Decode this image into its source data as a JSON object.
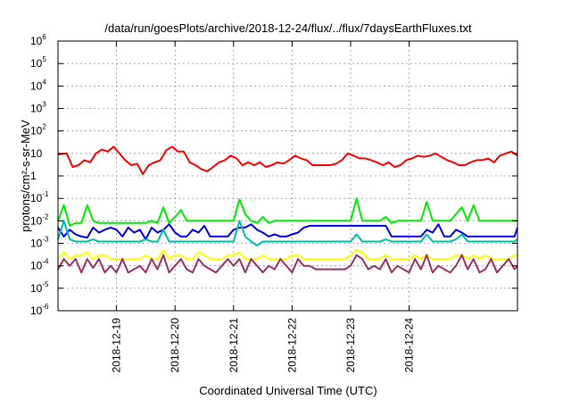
{
  "chart_data": {
    "type": "line",
    "title": "/data/run/goesPlots/archive/2018-12-24/flux/../flux/7daysEarthFluxes.txt",
    "xlabel": "Coordinated Universal Time (UTC)",
    "ylabel": "protons/cm²-s-sr-MeV",
    "yscale": "log",
    "ylim": [
      1e-06,
      1000000.0
    ],
    "xlim": [
      0,
      7.85
    ],
    "x_axis_unit": "days since 2018-12-18 00:00 UTC",
    "grid": true,
    "legend": "none",
    "x_ticks": [
      {
        "x": 1,
        "label": "2018-12-19"
      },
      {
        "x": 2,
        "label": "2018-12-20"
      },
      {
        "x": 3,
        "label": "2018-12-21"
      },
      {
        "x": 4,
        "label": "2018-12-22"
      },
      {
        "x": 5,
        "label": "2018-12-23"
      },
      {
        "x": 6,
        "label": "2018-12-24"
      }
    ],
    "y_ticks": [
      {
        "value": 1e-06,
        "base": "10",
        "exp": "-6"
      },
      {
        "value": 1e-05,
        "base": "10",
        "exp": "-5"
      },
      {
        "value": 0.0001,
        "base": "10",
        "exp": "-4"
      },
      {
        "value": 0.001,
        "base": "10",
        "exp": "-3"
      },
      {
        "value": 0.01,
        "base": "10",
        "exp": "-2"
      },
      {
        "value": 0.1,
        "base": "10",
        "exp": "-1"
      },
      {
        "value": 1,
        "base": "1",
        "exp": ""
      },
      {
        "value": 10,
        "base": "10",
        "exp": ""
      },
      {
        "value": 100.0,
        "base": "10",
        "exp": "2"
      },
      {
        "value": 1000.0,
        "base": "10",
        "exp": "3"
      },
      {
        "value": 10000.0,
        "base": "10",
        "exp": "4"
      },
      {
        "value": 100000.0,
        "base": "10",
        "exp": "5"
      },
      {
        "value": 1000000.0,
        "base": "10",
        "exp": "6"
      }
    ],
    "series": [
      {
        "color": "#ff0000",
        "x": [
          0,
          0.15,
          0.25,
          0.35,
          0.45,
          0.55,
          0.65,
          0.75,
          0.85,
          0.95,
          1.05,
          1.15,
          1.25,
          1.35,
          1.45,
          1.55,
          1.65,
          1.75,
          1.85,
          1.95,
          2.05,
          2.15,
          2.25,
          2.35,
          2.45,
          2.55,
          2.65,
          2.75,
          2.85,
          2.95,
          3.05,
          3.15,
          3.25,
          3.35,
          3.45,
          3.55,
          3.65,
          3.75,
          3.85,
          3.95,
          4.05,
          4.15,
          4.25,
          4.35,
          4.45,
          4.55,
          4.65,
          4.75,
          4.85,
          4.95,
          5.05,
          5.15,
          5.25,
          5.35,
          5.45,
          5.55,
          5.65,
          5.75,
          5.85,
          5.95,
          6.05,
          6.15,
          6.25,
          6.35,
          6.45,
          6.55,
          6.65,
          6.75,
          6.85,
          6.95,
          7.05,
          7.15,
          7.25,
          7.35,
          7.45,
          7.55,
          7.65,
          7.75,
          7.85
        ],
        "y": [
          9,
          10,
          2.5,
          3,
          5,
          4,
          10,
          15,
          12,
          20,
          10,
          5,
          3,
          3.5,
          1.2,
          3,
          4,
          5,
          14,
          20,
          12,
          12,
          4,
          3,
          2,
          1.6,
          2.5,
          4,
          5,
          8,
          6,
          3,
          4,
          3,
          4,
          2.5,
          3,
          4,
          3.5,
          5,
          8,
          6,
          5,
          3,
          3,
          3,
          3,
          3.5,
          5,
          10,
          8,
          6,
          6,
          5,
          4,
          3,
          4,
          2.5,
          3,
          5,
          6,
          8,
          7,
          8,
          10,
          7,
          5,
          4,
          3,
          3,
          4,
          5,
          5,
          6,
          4,
          8,
          10,
          12,
          8
        ]
      },
      {
        "color": "#00ee00",
        "x": [
          0,
          0.1,
          0.2,
          0.3,
          0.4,
          0.5,
          0.6,
          0.7,
          0.8,
          0.9,
          1.0,
          1.1,
          1.2,
          1.3,
          1.4,
          1.5,
          1.6,
          1.7,
          1.8,
          1.9,
          2.0,
          2.1,
          2.2,
          2.3,
          2.4,
          2.5,
          2.6,
          2.7,
          2.8,
          2.9,
          3.0,
          3.1,
          3.2,
          3.3,
          3.4,
          3.5,
          3.6,
          3.7,
          3.8,
          3.9,
          4.0,
          4.1,
          4.2,
          4.3,
          4.4,
          4.5,
          4.6,
          4.7,
          4.8,
          4.9,
          5.0,
          5.1,
          5.2,
          5.3,
          5.4,
          5.5,
          5.6,
          5.7,
          5.8,
          5.9,
          6.0,
          6.1,
          6.2,
          6.3,
          6.4,
          6.5,
          6.6,
          6.7,
          6.8,
          6.9,
          7.0,
          7.1,
          7.2,
          7.3,
          7.4,
          7.5,
          7.6,
          7.7,
          7.8,
          7.85
        ],
        "y": [
          0.01,
          0.05,
          0.006,
          0.008,
          0.008,
          0.05,
          0.01,
          0.008,
          0.008,
          0.008,
          0.008,
          0.008,
          0.008,
          0.008,
          0.008,
          0.008,
          0.01,
          0.008,
          0.04,
          0.008,
          0.015,
          0.03,
          0.01,
          0.01,
          0.01,
          0.01,
          0.01,
          0.01,
          0.01,
          0.01,
          0.01,
          0.09,
          0.02,
          0.01,
          0.008,
          0.015,
          0.008,
          0.01,
          0.01,
          0.01,
          0.01,
          0.01,
          0.01,
          0.01,
          0.01,
          0.01,
          0.01,
          0.01,
          0.01,
          0.01,
          0.01,
          0.1,
          0.01,
          0.01,
          0.01,
          0.01,
          0.015,
          0.008,
          0.01,
          0.01,
          0.01,
          0.01,
          0.01,
          0.07,
          0.01,
          0.01,
          0.01,
          0.01,
          0.02,
          0.04,
          0.01,
          0.05,
          0.01,
          0.01,
          0.01,
          0.01,
          0.01,
          0.01,
          0.01,
          0.01
        ]
      },
      {
        "color": "#0000ee",
        "x": [
          0,
          0.1,
          0.2,
          0.3,
          0.4,
          0.5,
          0.6,
          0.7,
          0.8,
          0.9,
          1.0,
          1.1,
          1.2,
          1.3,
          1.4,
          1.5,
          1.6,
          1.7,
          1.8,
          1.9,
          2.0,
          2.1,
          2.2,
          2.3,
          2.4,
          2.5,
          2.6,
          2.7,
          2.8,
          2.9,
          3.0,
          3.1,
          3.2,
          3.3,
          3.4,
          3.5,
          3.6,
          3.7,
          3.8,
          3.9,
          4.0,
          4.1,
          4.2,
          4.3,
          4.4,
          4.5,
          4.6,
          4.7,
          4.8,
          4.9,
          5.0,
          5.1,
          5.2,
          5.3,
          5.4,
          5.5,
          5.6,
          5.7,
          5.8,
          5.9,
          6.0,
          6.1,
          6.2,
          6.3,
          6.4,
          6.5,
          6.6,
          6.7,
          6.8,
          6.9,
          7.0,
          7.1,
          7.2,
          7.3,
          7.4,
          7.5,
          7.6,
          7.7,
          7.8,
          7.85
        ],
        "y": [
          0.005,
          0.002,
          0.004,
          0.0025,
          0.002,
          0.0018,
          0.005,
          0.003,
          0.004,
          0.005,
          0.004,
          0.002,
          0.005,
          0.003,
          0.004,
          0.0015,
          0.005,
          0.003,
          0.004,
          0.007,
          0.003,
          0.002,
          0.002,
          0.004,
          0.003,
          0.006,
          0.002,
          0.002,
          0.002,
          0.002,
          0.004,
          0.005,
          0.005,
          0.007,
          0.004,
          0.003,
          0.002,
          0.0025,
          0.002,
          0.002,
          0.0025,
          0.003,
          0.005,
          0.006,
          0.006,
          0.006,
          0.006,
          0.006,
          0.006,
          0.006,
          0.006,
          0.006,
          0.006,
          0.006,
          0.006,
          0.006,
          0.006,
          0.002,
          0.002,
          0.002,
          0.002,
          0.002,
          0.002,
          0.004,
          0.003,
          0.007,
          0.002,
          0.002,
          0.004,
          0.003,
          0.002,
          0.002,
          0.002,
          0.002,
          0.002,
          0.002,
          0.002,
          0.002,
          0.002,
          0.005
        ]
      },
      {
        "color": "#00c0a0",
        "x": [
          0,
          0.1,
          0.2,
          0.3,
          0.4,
          0.5,
          0.6,
          0.7,
          0.8,
          0.9,
          1.0,
          1.1,
          1.2,
          1.3,
          1.4,
          1.5,
          1.6,
          1.7,
          1.8,
          1.9,
          2.0,
          2.1,
          2.2,
          2.3,
          2.4,
          2.5,
          2.6,
          2.7,
          2.8,
          2.9,
          3.0,
          3.1,
          3.2,
          3.3,
          3.4,
          3.5,
          3.6,
          3.7,
          3.8,
          3.9,
          4.0,
          4.1,
          4.2,
          4.3,
          4.4,
          4.5,
          4.6,
          4.7,
          4.8,
          4.9,
          5.0,
          5.1,
          5.2,
          5.3,
          5.4,
          5.5,
          5.6,
          5.7,
          5.8,
          5.9,
          6.0,
          6.1,
          6.2,
          6.3,
          6.4,
          6.5,
          6.6,
          6.7,
          6.8,
          6.9,
          7.0,
          7.1,
          7.2,
          7.3,
          7.4,
          7.5,
          7.6,
          7.7,
          7.8,
          7.85
        ],
        "y": [
          0.0015,
          0.01,
          0.0015,
          0.0012,
          0.0012,
          0.0012,
          0.0015,
          0.0012,
          0.0012,
          0.0012,
          0.0012,
          0.0012,
          0.0012,
          0.0012,
          0.0012,
          0.0015,
          0.0012,
          0.0012,
          0.004,
          0.0012,
          0.0012,
          0.0012,
          0.0012,
          0.0012,
          0.0012,
          0.0012,
          0.0012,
          0.0012,
          0.0012,
          0.0012,
          0.0012,
          0.01,
          0.002,
          0.0012,
          0.0008,
          0.0012,
          0.0012,
          0.0012,
          0.0012,
          0.0012,
          0.0012,
          0.0012,
          0.0012,
          0.0012,
          0.0012,
          0.0012,
          0.0012,
          0.0012,
          0.0012,
          0.0012,
          0.0012,
          0.0025,
          0.0012,
          0.0012,
          0.0012,
          0.0012,
          0.0015,
          0.0012,
          0.0012,
          0.0012,
          0.0012,
          0.0012,
          0.0012,
          0.0025,
          0.0012,
          0.0012,
          0.0012,
          0.0012,
          0.0015,
          0.0025,
          0.0012,
          0.0012,
          0.0012,
          0.0012,
          0.0012,
          0.0012,
          0.0012,
          0.0012,
          0.0012,
          0.0015
        ]
      },
      {
        "color": "#ffff00",
        "x": [
          0,
          0.1,
          0.2,
          0.3,
          0.4,
          0.5,
          0.6,
          0.7,
          0.8,
          0.9,
          1.0,
          1.1,
          1.2,
          1.3,
          1.4,
          1.5,
          1.6,
          1.7,
          1.8,
          1.9,
          2.0,
          2.1,
          2.2,
          2.3,
          2.4,
          2.5,
          2.6,
          2.7,
          2.8,
          2.9,
          3.0,
          3.1,
          3.2,
          3.3,
          3.4,
          3.5,
          3.6,
          3.7,
          3.8,
          3.9,
          4.0,
          4.1,
          4.2,
          4.3,
          4.4,
          4.5,
          4.6,
          4.7,
          4.8,
          4.9,
          5.0,
          5.1,
          5.2,
          5.3,
          5.4,
          5.5,
          5.6,
          5.7,
          5.8,
          5.9,
          6.0,
          6.1,
          6.2,
          6.3,
          6.4,
          6.5,
          6.6,
          6.7,
          6.8,
          6.9,
          7.0,
          7.1,
          7.2,
          7.3,
          7.4,
          7.5,
          7.6,
          7.7,
          7.8,
          7.85
        ],
        "y": [
          0.0002,
          0.0004,
          0.0002,
          0.0003,
          0.0003,
          0.0004,
          0.0002,
          0.0003,
          0.0003,
          0.0002,
          0.0002,
          0.0002,
          0.0002,
          0.0002,
          0.0002,
          0.0003,
          0.0002,
          0.0002,
          0.0005,
          0.0002,
          0.0003,
          0.0003,
          0.0002,
          0.0002,
          0.0004,
          0.0003,
          0.0002,
          0.0002,
          0.0002,
          0.0003,
          0.0003,
          0.0004,
          0.0002,
          0.0002,
          0.0002,
          0.0003,
          0.0002,
          0.0002,
          0.0002,
          0.0002,
          0.0003,
          0.0003,
          0.0002,
          0.0002,
          0.0002,
          0.0002,
          0.0002,
          0.0002,
          0.0002,
          0.0002,
          0.0003,
          0.0005,
          0.0004,
          0.0002,
          0.0002,
          0.0002,
          0.0003,
          0.0002,
          0.0002,
          0.0002,
          0.0002,
          0.0003,
          0.0002,
          0.0003,
          0.0002,
          0.0002,
          0.0002,
          0.0002,
          0.0003,
          0.0003,
          0.0002,
          0.0003,
          0.0002,
          0.0003,
          0.0002,
          0.0002,
          0.0002,
          0.0002,
          0.0003,
          0.0003
        ]
      },
      {
        "color": "#993366",
        "x": [
          0,
          0.1,
          0.2,
          0.3,
          0.4,
          0.5,
          0.6,
          0.7,
          0.8,
          0.9,
          1.0,
          1.1,
          1.2,
          1.3,
          1.4,
          1.5,
          1.6,
          1.7,
          1.8,
          1.9,
          2.0,
          2.1,
          2.2,
          2.3,
          2.4,
          2.5,
          2.6,
          2.7,
          2.8,
          2.9,
          3.0,
          3.1,
          3.2,
          3.3,
          3.4,
          3.5,
          3.6,
          3.7,
          3.8,
          3.9,
          4.0,
          4.1,
          4.2,
          4.3,
          4.4,
          4.5,
          4.6,
          4.7,
          4.8,
          4.9,
          5.0,
          5.1,
          5.2,
          5.3,
          5.4,
          5.5,
          5.6,
          5.7,
          5.8,
          5.9,
          6.0,
          6.1,
          6.2,
          6.3,
          6.4,
          6.5,
          6.6,
          6.7,
          6.8,
          6.9,
          7.0,
          7.1,
          7.2,
          7.3,
          7.4,
          7.5,
          7.6,
          7.7,
          7.8,
          7.85
        ],
        "y": [
          7e-05,
          0.0002,
          0.0001,
          0.0002,
          5e-05,
          0.0002,
          8e-05,
          0.0002,
          5e-05,
          0.0001,
          5e-05,
          0.0002,
          5e-05,
          7e-05,
          0.0001,
          5e-05,
          0.0002,
          7e-05,
          0.0003,
          5e-05,
          0.0001,
          0.0002,
          7e-05,
          5e-05,
          0.0002,
          0.0001,
          7e-05,
          5e-05,
          0.0001,
          0.0002,
          0.0001,
          0.0002,
          5e-05,
          0.0002,
          0.0001,
          5e-05,
          0.0001,
          7e-05,
          0.0002,
          0.0001,
          5e-05,
          0.0002,
          0.0001,
          0.0001,
          7e-05,
          7e-05,
          7e-05,
          7e-05,
          7e-05,
          7e-05,
          0.0001,
          0.0003,
          0.0002,
          7e-05,
          0.0001,
          7e-05,
          0.0002,
          5e-05,
          0.0001,
          7e-05,
          5e-05,
          0.0002,
          7e-05,
          0.0003,
          5e-05,
          0.0001,
          7e-05,
          5e-05,
          0.0001,
          0.0003,
          7e-05,
          0.0002,
          5e-05,
          7e-05,
          0.0002,
          5e-05,
          0.0001,
          0.0002,
          7e-05,
          0.0001
        ]
      }
    ]
  }
}
